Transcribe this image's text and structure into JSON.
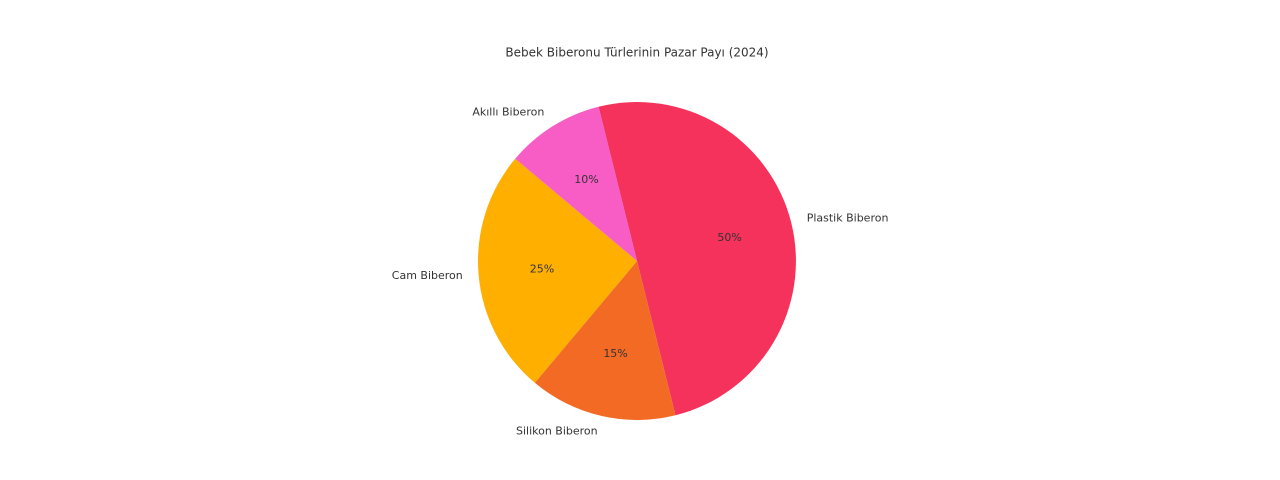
{
  "chart_data": {
    "type": "pie",
    "title": "Bebek Biberonu Türlerinin Pazar Payı (2024)",
    "categories": [
      "Plastik Biberon",
      "Silikon Biberon",
      "Cam Biberon",
      "Akıllı Biberon"
    ],
    "values": [
      50,
      15,
      25,
      10
    ],
    "value_labels": [
      "50%",
      "15%",
      "25%",
      "10%"
    ],
    "colors": [
      "#f5325b",
      "#f36a24",
      "#ffaf00",
      "#f85cc5"
    ]
  }
}
